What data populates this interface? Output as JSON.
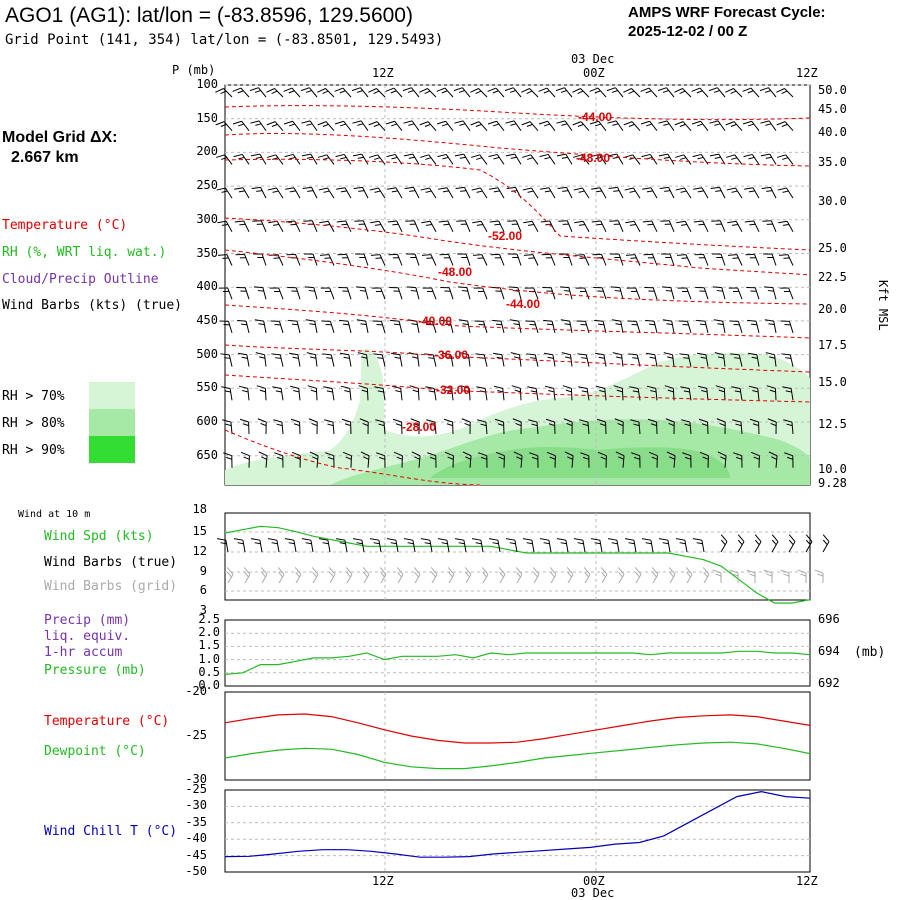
{
  "header": {
    "title": "AGO1 (AG1):  lat/lon = (-83.8596, 129.5600)",
    "subtitle": "Grid Point (141, 354) lat/lon = (-83.8501, 129.5493)",
    "cycle_line1": "AMPS WRF Forecast Cycle:",
    "cycle_line2": "2025-12-02 / 00  Z",
    "grid_dx_line1": "Model Grid ΔX:",
    "grid_dx_line2": "2.667 km"
  },
  "colors": {
    "temperature": "#e00000",
    "rh": "#22bb22",
    "cloud": "#7733aa",
    "wind_chill": "#0000bb",
    "grid_barbs": "#aaaaaa",
    "rh70": "#d6f5d6",
    "rh80": "#a6e8a6",
    "rh90": "#33dd33"
  },
  "time_axis": {
    "top_labels": [
      "12Z",
      "00Z",
      "12Z"
    ],
    "date_label": "03 Dec",
    "bottom_labels": [
      "12Z",
      "00Z",
      "12Z"
    ]
  },
  "legend": {
    "temperature": "Temperature (°C)",
    "rh": "RH (%, WRT liq. wat.)",
    "cloud": "Cloud/Precip Outline",
    "wind": "Wind Barbs (kts) (true)",
    "rh70": "RH > 70%",
    "rh80": "RH > 80%",
    "rh90": "RH > 90%"
  },
  "chart_data": [
    {
      "type": "contour-profile",
      "title": "Vertical profile",
      "ylabel": "P (mb)",
      "yticks": [
        "100",
        "150",
        "200",
        "250",
        "300",
        "350",
        "400",
        "450",
        "500",
        "550",
        "600",
        "650"
      ],
      "right_axis_label": "Kft MSL",
      "right_ticks": [
        "50.0",
        "45.0",
        "40.0",
        "35.0",
        "30.0",
        "25.0",
        "22.5",
        "20.0",
        "17.5",
        "15.0",
        "12.5",
        "10.0",
        "9.28"
      ],
      "isotherms": [
        {
          "label": "-44.00",
          "value": -44
        },
        {
          "label": "-48.00",
          "value": -48
        },
        {
          "label": "-52.00",
          "value": -52
        },
        {
          "label": "-48.00",
          "value": -48
        },
        {
          "label": "-44.00",
          "value": -44
        },
        {
          "label": "-40.00",
          "value": -40
        },
        {
          "label": "-36.00",
          "value": -36
        },
        {
          "label": "-32.00",
          "value": -32
        },
        {
          "label": "-28.00",
          "value": -28
        }
      ]
    },
    {
      "type": "line",
      "title": "Wind at 10 m",
      "labels": {
        "speed": "Wind Spd (kts)",
        "true": "Wind Barbs (true)",
        "grid": "Wind Barbs (grid)"
      },
      "yticks": [
        "18",
        "15",
        "12",
        "9",
        "6",
        "3"
      ],
      "ylim": [
        3,
        18
      ],
      "series": [
        {
          "name": "Wind Spd",
          "values": [
            15,
            15.5,
            16,
            15.8,
            15.2,
            14.5,
            14,
            13.5,
            13,
            13,
            13,
            13,
            13,
            13,
            13,
            13,
            12.5,
            12,
            12,
            12,
            12,
            12,
            12,
            12,
            12,
            12,
            11.5,
            11,
            10,
            8,
            6,
            4.5,
            4.5,
            5
          ]
        }
      ]
    },
    {
      "type": "line",
      "title": "Precip / Pressure",
      "labels": {
        "precip": "Precip (mm)",
        "liq": "liq. equiv.",
        "accum": "1-hr accum",
        "pressure": "Pressure (mb)",
        "units": "(mb)"
      },
      "yticks": [
        "2.5",
        "2.0",
        "1.5",
        "1.0",
        "0.5",
        "0.0"
      ],
      "right_ticks": [
        "696",
        "694",
        "692"
      ],
      "ylim": [
        692,
        696
      ],
      "series": [
        {
          "name": "Pressure",
          "values": [
            692.7,
            692.8,
            693.3,
            693.3,
            693.5,
            693.7,
            693.7,
            693.8,
            694,
            693.6,
            693.8,
            693.8,
            693.8,
            693.9,
            693.7,
            694,
            693.9,
            694,
            694,
            694,
            694,
            694,
            694,
            694,
            693.9,
            694,
            694,
            694,
            694,
            694.1,
            694.1,
            694,
            694,
            693.9
          ]
        }
      ]
    },
    {
      "type": "line",
      "title": "Temperature / Dewpoint",
      "labels": {
        "temperature": "Temperature (°C)",
        "dewpoint": "Dewpoint (°C)"
      },
      "yticks": [
        "-20",
        "-25",
        "-30"
      ],
      "ylim": [
        -30,
        -20
      ],
      "series": [
        {
          "name": "Temperature",
          "values": [
            -23.5,
            -23,
            -22.6,
            -22.5,
            -22.8,
            -23.5,
            -24.3,
            -25,
            -25.5,
            -25.8,
            -25.8,
            -25.7,
            -25.3,
            -24.8,
            -24.3,
            -23.8,
            -23.3,
            -22.9,
            -22.7,
            -22.6,
            -22.8,
            -23.3,
            -23.8
          ]
        },
        {
          "name": "Dewpoint",
          "values": [
            -27.5,
            -27,
            -26.6,
            -26.4,
            -26.5,
            -27.1,
            -28,
            -28.5,
            -28.7,
            -28.7,
            -28.4,
            -28,
            -27.5,
            -27.2,
            -26.9,
            -26.6,
            -26.3,
            -26,
            -25.8,
            -25.7,
            -25.9,
            -26.4,
            -27
          ]
        }
      ]
    },
    {
      "type": "line",
      "title": "Wind Chill",
      "labels": {
        "wind_chill": "Wind Chill T (°C)"
      },
      "yticks": [
        "-25",
        "-30",
        "-35",
        "-40",
        "-45",
        "-50"
      ],
      "ylim": [
        -50,
        -25
      ],
      "series": [
        {
          "name": "Wind Chill",
          "values": [
            -45.3,
            -45.2,
            -44.5,
            -43.7,
            -43.2,
            -43.2,
            -43.7,
            -44.5,
            -45.5,
            -45.5,
            -45.3,
            -44.5,
            -44,
            -43.5,
            -43,
            -42.5,
            -41.5,
            -41,
            -39,
            -35,
            -31,
            -27,
            -25.5,
            -27,
            -27.5
          ]
        }
      ]
    }
  ]
}
